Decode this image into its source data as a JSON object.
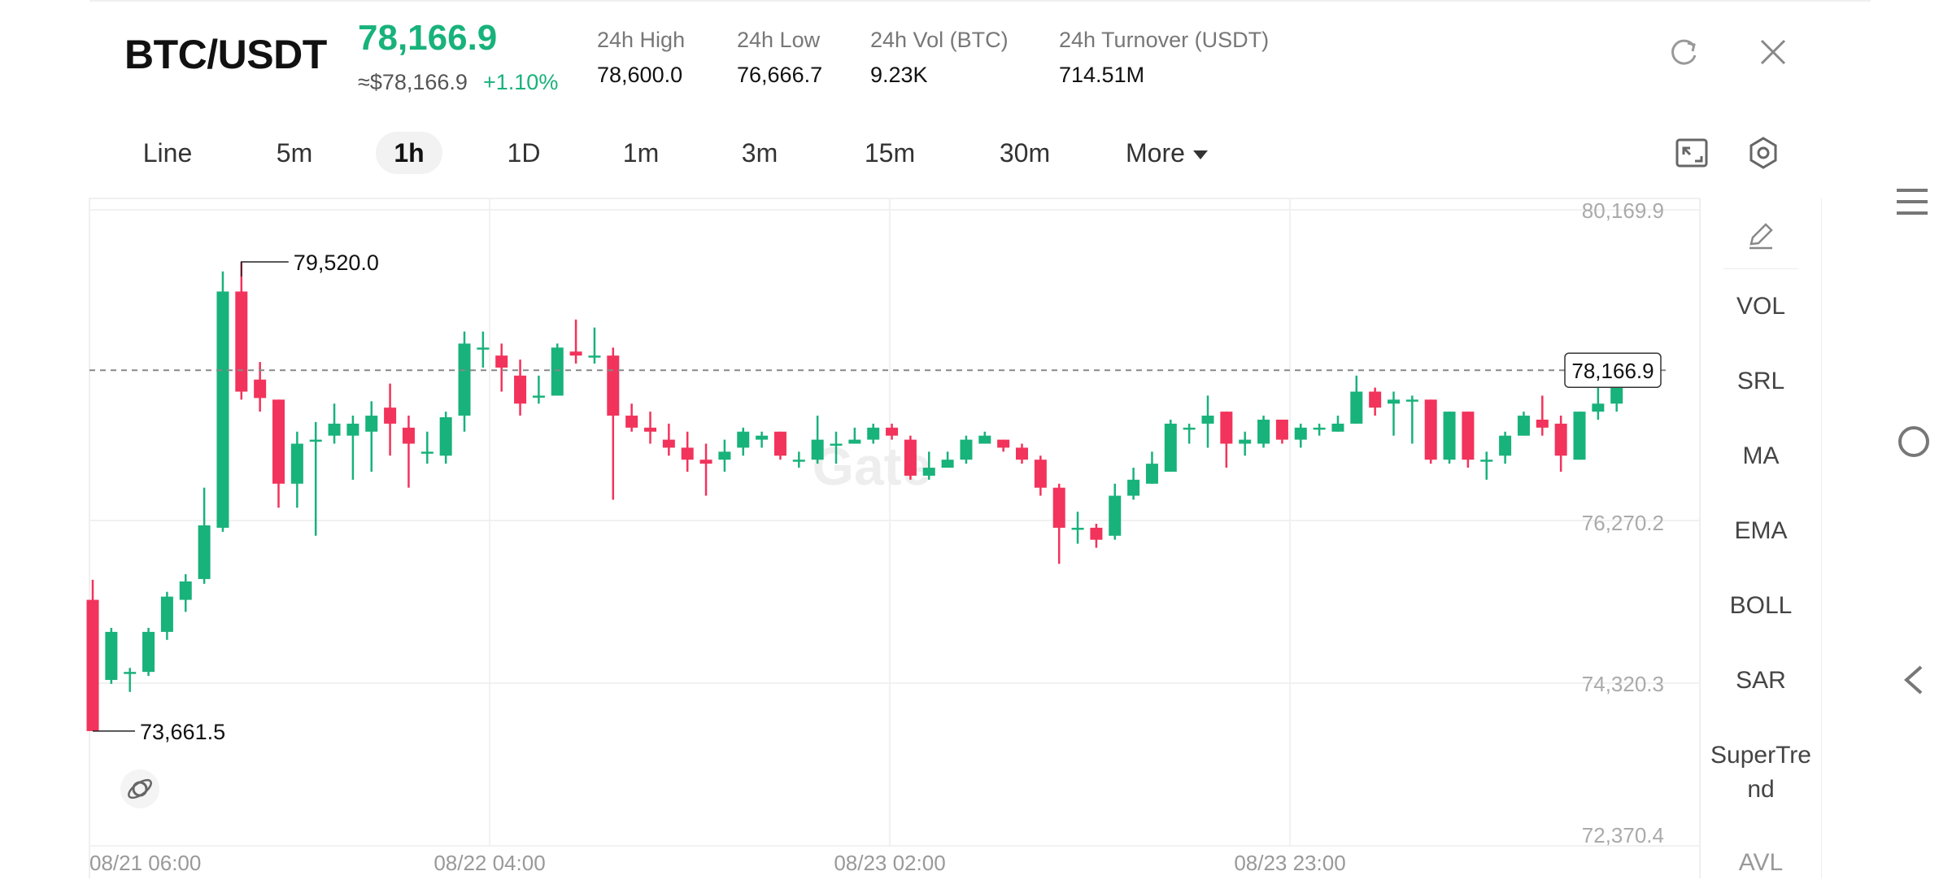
{
  "header": {
    "pair": "BTC/USDT",
    "price": "78,166.9",
    "usd_price": "≈$78,166.9",
    "change": "+1.10%",
    "stats": [
      {
        "label": "24h   High",
        "value": "78,600.0"
      },
      {
        "label": "24h   Low",
        "value": "76,666.7"
      },
      {
        "label": "24h   Vol (BTC)",
        "value": "9.23K"
      },
      {
        "label": "24h   Turnover (USDT)",
        "value": "714.51M"
      }
    ]
  },
  "intervals": [
    "Line",
    "5m",
    "1h",
    "1D",
    "1m",
    "3m",
    "15m",
    "30m"
  ],
  "selected_interval": "1h",
  "more_label": "More",
  "indicators": [
    "VOL",
    "SRL",
    "MA",
    "EMA",
    "BOLL",
    "SAR",
    "SuperTre",
    "nd",
    "AVL"
  ],
  "watermark": "Gate",
  "colors": {
    "up": "#18b27b",
    "down": "#f2335b",
    "accent": "#18b27b"
  },
  "icons": [
    "refresh-icon",
    "close-icon",
    "fullscreen-icon",
    "settings-icon",
    "pencil-icon",
    "menu-icon",
    "home-circle-icon",
    "back-icon",
    "orbit-icon"
  ],
  "chart_data": {
    "type": "candlestick",
    "y_ticks": [
      "80,169.9",
      "76,270.2",
      "74,320.3",
      "72,370.4"
    ],
    "x_labels": [
      "08/21 06:00",
      "08/22 04:00",
      "08/23 02:00",
      "08/23 23:00"
    ],
    "ylim": [
      72370.4,
      80169.9
    ],
    "current_price": 78166.9,
    "current_price_label": "78,166.9",
    "high_label": "79,520.0",
    "low_label": "73,661.5",
    "grid": true,
    "candles": [
      [
        75300,
        73661.5,
        75550,
        73661.5
      ],
      [
        74300,
        74900,
        74950,
        74250
      ],
      [
        74400,
        74400,
        74450,
        74150
      ],
      [
        74400,
        74900,
        74950,
        74350
      ],
      [
        74900,
        75340,
        75400,
        74800
      ],
      [
        75300,
        75530,
        75620,
        75150
      ],
      [
        75560,
        76230,
        76700,
        75500
      ],
      [
        76200,
        79150,
        79400,
        76150
      ],
      [
        79150,
        77900,
        79520,
        77800
      ],
      [
        78050,
        77820,
        78270,
        77650
      ],
      [
        77800,
        76750,
        77800,
        76450
      ],
      [
        76750,
        77250,
        77400,
        76450
      ],
      [
        77300,
        77300,
        77520,
        76100
      ],
      [
        77350,
        77500,
        77750,
        77250
      ],
      [
        77350,
        77500,
        77600,
        76800
      ],
      [
        77400,
        77600,
        77780,
        76900
      ],
      [
        77700,
        77500,
        78000,
        77100
      ],
      [
        77450,
        77250,
        77600,
        76700
      ],
      [
        77150,
        77150,
        77400,
        77000
      ],
      [
        77100,
        77580,
        77650,
        77000
      ],
      [
        77600,
        78500,
        78650,
        77400
      ],
      [
        78450,
        78450,
        78650,
        78200
      ],
      [
        78350,
        78200,
        78500,
        77900
      ],
      [
        78100,
        77750,
        78300,
        77600
      ],
      [
        77850,
        77850,
        78100,
        77750
      ],
      [
        77850,
        78450,
        78500,
        77850
      ],
      [
        78400,
        78350,
        78800,
        78250
      ],
      [
        78350,
        78350,
        78700,
        78250
      ],
      [
        78350,
        77600,
        78450,
        76550
      ],
      [
        77600,
        77450,
        77750,
        77400
      ],
      [
        77450,
        77400,
        77650,
        77250
      ],
      [
        77300,
        77200,
        77500,
        77100
      ],
      [
        77200,
        77050,
        77400,
        76900
      ],
      [
        77050,
        77000,
        77250,
        76600
      ],
      [
        77050,
        77150,
        77300,
        76900
      ],
      [
        77200,
        77400,
        77450,
        77100
      ],
      [
        77300,
        77350,
        77400,
        77200
      ],
      [
        77400,
        77100,
        77400,
        77050
      ],
      [
        77050,
        77050,
        77150,
        76950
      ],
      [
        77050,
        77300,
        77600,
        77000
      ],
      [
        77250,
        77250,
        77400,
        77000
      ],
      [
        77250,
        77300,
        77450,
        77250
      ],
      [
        77300,
        77450,
        77500,
        77250
      ],
      [
        77450,
        77350,
        77500,
        77300
      ],
      [
        77300,
        76850,
        77350,
        76800
      ],
      [
        76850,
        76950,
        77150,
        76800
      ],
      [
        76950,
        77050,
        77150,
        76950
      ],
      [
        77050,
        77300,
        77350,
        77000
      ],
      [
        77250,
        77350,
        77400,
        77250
      ],
      [
        77300,
        77200,
        77300,
        77150
      ],
      [
        77200,
        77050,
        77250,
        77000
      ],
      [
        77050,
        76700,
        77100,
        76600
      ],
      [
        76700,
        76200,
        76750,
        75750
      ],
      [
        76200,
        76200,
        76400,
        76000
      ],
      [
        76200,
        76050,
        76250,
        75950
      ],
      [
        76100,
        76600,
        76750,
        76050
      ],
      [
        76600,
        76800,
        76950,
        76550
      ],
      [
        76750,
        77000,
        77150,
        76750
      ],
      [
        76900,
        77500,
        77550,
        76900
      ],
      [
        77450,
        77450,
        77500,
        77250
      ],
      [
        77500,
        77600,
        77850,
        77200
      ],
      [
        77650,
        77250,
        77650,
        76950
      ],
      [
        77250,
        77300,
        77400,
        77100
      ],
      [
        77250,
        77550,
        77600,
        77200
      ],
      [
        77550,
        77300,
        77550,
        77250
      ],
      [
        77300,
        77450,
        77500,
        77200
      ],
      [
        77450,
        77450,
        77500,
        77350
      ],
      [
        77400,
        77500,
        77600,
        77400
      ],
      [
        77500,
        77900,
        78100,
        77500
      ],
      [
        77900,
        77700,
        77950,
        77600
      ],
      [
        77750,
        77800,
        77900,
        77350
      ],
      [
        77800,
        77800,
        77850,
        77250
      ],
      [
        77800,
        77050,
        77800,
        77000
      ],
      [
        77050,
        77650,
        77650,
        77000
      ],
      [
        77650,
        77050,
        77650,
        76950
      ],
      [
        77050,
        77050,
        77150,
        76800
      ],
      [
        77100,
        77350,
        77400,
        77000
      ],
      [
        77350,
        77600,
        77650,
        77350
      ],
      [
        77550,
        77450,
        77850,
        77350
      ],
      [
        77500,
        77100,
        77600,
        76900
      ],
      [
        77050,
        77650,
        77650,
        77050
      ],
      [
        77650,
        77750,
        78350,
        77550
      ],
      [
        77750,
        78166.9,
        78366,
        77650
      ]
    ]
  }
}
